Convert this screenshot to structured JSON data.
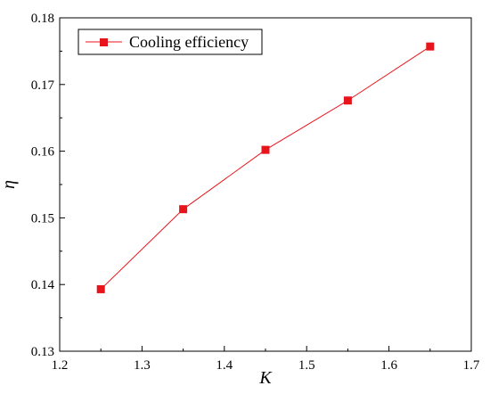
{
  "chart_data": {
    "type": "line",
    "xlabel": "K",
    "ylabel": "η",
    "xlim": [
      1.2,
      1.7
    ],
    "ylim": [
      0.13,
      0.18
    ],
    "xticks": [
      "1.2",
      "1.3",
      "1.4",
      "1.5",
      "1.6",
      "1.7"
    ],
    "yticks": [
      "0.13",
      "0.14",
      "0.15",
      "0.16",
      "0.17",
      "0.18"
    ],
    "grid": false,
    "legend_position": "top-left",
    "series": [
      {
        "name": "Cooling efficiency",
        "color": "#e8141b",
        "marker": "square",
        "x": [
          1.25,
          1.35,
          1.45,
          1.55,
          1.65
        ],
        "y": [
          0.1393,
          0.1513,
          0.1602,
          0.1676,
          0.1757
        ]
      }
    ]
  }
}
